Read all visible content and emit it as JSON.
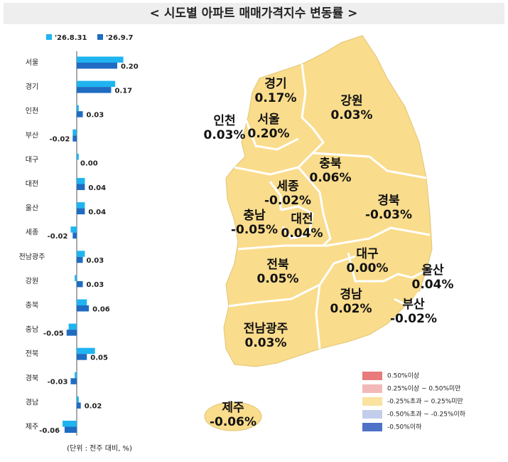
{
  "chart_data": {
    "type": "bar",
    "orientation": "horizontal",
    "title": "< 시도별 아파트 매매가격지수 변동률 >",
    "unit_note": "(단위 : 전주 대비, %)",
    "categories": [
      "서울",
      "경기",
      "인천",
      "부산",
      "대구",
      "대전",
      "울산",
      "세종",
      "전남광주",
      "강원",
      "충북",
      "충남",
      "전북",
      "경북",
      "경남",
      "제주"
    ],
    "series": [
      {
        "name": "'26.8.31",
        "color": "#1fb4f0",
        "values": [
          0.23,
          0.19,
          0.01,
          -0.02,
          0.01,
          0.04,
          0.04,
          -0.03,
          0.04,
          -0.01,
          0.05,
          -0.04,
          0.09,
          -0.01,
          0.01,
          -0.07
        ]
      },
      {
        "name": "'26.9.7",
        "color": "#1f6cc2",
        "values": [
          0.2,
          0.17,
          0.03,
          -0.02,
          0.0,
          0.04,
          0.04,
          -0.02,
          0.03,
          0.03,
          0.06,
          -0.05,
          0.05,
          -0.03,
          0.02,
          -0.06
        ],
        "value_labels": [
          "0.20",
          "0.17",
          "0.03",
          "-0.02",
          "0.00",
          "0.04",
          "0.04",
          "-0.02",
          "0.03",
          "0.03",
          "0.06",
          "-0.05",
          "0.05",
          "-0.03",
          "0.02",
          "-0.06"
        ]
      }
    ]
  },
  "map": {
    "regions": [
      {
        "name": "경기",
        "label": "0.17%"
      },
      {
        "name": "인천",
        "label": "0.03%"
      },
      {
        "name": "서울",
        "label": "0.20%"
      },
      {
        "name": "강원",
        "label": "0.03%"
      },
      {
        "name": "충북",
        "label": "0.06%"
      },
      {
        "name": "세종",
        "label": "-0.02%"
      },
      {
        "name": "경북",
        "label": "-0.03%"
      },
      {
        "name": "충남",
        "label": "-0.05%"
      },
      {
        "name": "대전",
        "label": "0.04%"
      },
      {
        "name": "대구",
        "label": "0.00%"
      },
      {
        "name": "울산",
        "label": "0.04%"
      },
      {
        "name": "전북",
        "label": "0.05%"
      },
      {
        "name": "부산",
        "label": "-0.02%"
      },
      {
        "name": "경남",
        "label": "0.02%"
      },
      {
        "name": "전남광주",
        "label": "0.03%"
      },
      {
        "name": "제주",
        "label": "-0.06%"
      }
    ],
    "legend": [
      {
        "label": "0.50%이상",
        "color": "#e77b7b"
      },
      {
        "label": "0.25%이상 ~ 0.50%미만",
        "color": "#f3b9b9"
      },
      {
        "label": "-0.25%초과 ~ 0.25%미만",
        "color": "#fae3a0"
      },
      {
        "label": "-0.50%초과 ~ -0.25%이하",
        "color": "#c2cdea"
      },
      {
        "label": "-0.50%이하",
        "color": "#4d72c6"
      }
    ]
  }
}
